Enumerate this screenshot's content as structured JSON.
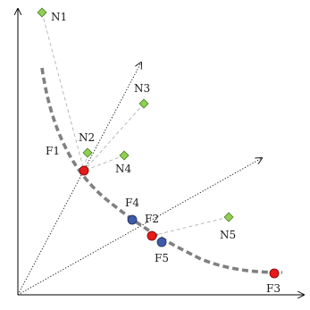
{
  "labels": {
    "N1": "N1",
    "N2": "N2",
    "N3": "N3",
    "N4": "N4",
    "N5": "N5",
    "F1": "F1",
    "F2": "F2",
    "F3": "F3",
    "F4": "F4",
    "F5": "F5"
  },
  "colors": {
    "axis": "#000000",
    "front_curve": "#808080",
    "ray": "#000000",
    "link": "#b3b3b3",
    "n_fill": "#8fd14f",
    "n_stroke": "#4a7a2a",
    "f_red_fill": "#e8191b",
    "f_red_stroke": "#7a0000",
    "f_blue_fill": "#3f5aa8",
    "f_blue_stroke": "#1d2b5c"
  },
  "node_kinds": {
    "N": "green-diamond",
    "F1": "red-circle",
    "F2": "red-circle",
    "F3": "red-circle",
    "F4": "blue-circle",
    "F5": "blue-circle"
  }
}
